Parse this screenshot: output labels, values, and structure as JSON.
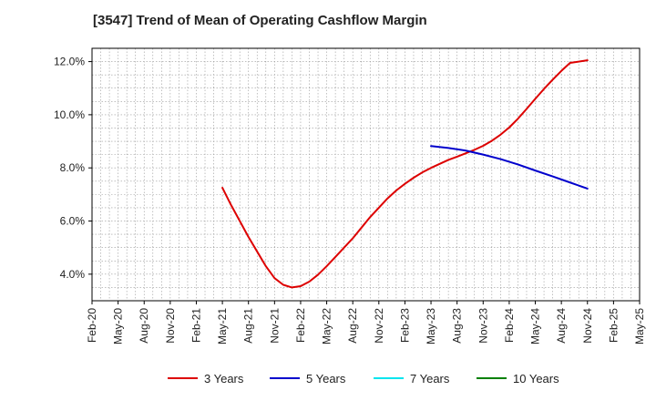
{
  "chart_data": {
    "type": "line",
    "title": "[3547]  Trend of Mean of Operating Cashflow Margin",
    "xlabel": "",
    "ylabel": "",
    "x_ticks": [
      "Feb-20",
      "May-20",
      "Aug-20",
      "Nov-20",
      "Feb-21",
      "May-21",
      "Aug-21",
      "Nov-21",
      "Feb-22",
      "May-22",
      "Aug-22",
      "Nov-22",
      "Feb-23",
      "May-23",
      "Aug-23",
      "Nov-23",
      "Feb-24",
      "May-24",
      "Aug-24",
      "Nov-24",
      "Feb-25",
      "May-25"
    ],
    "y_ticks": [
      "4.0%",
      "6.0%",
      "8.0%",
      "10.0%",
      "12.0%"
    ],
    "y_tick_values": [
      4,
      6,
      8,
      10,
      12
    ],
    "ylim": [
      3.0,
      12.5
    ],
    "grid": true,
    "legend_position": "bottom",
    "series": [
      {
        "name": "3 Years",
        "color": "#dd0000",
        "points": [
          {
            "x": "May-21",
            "y": 7.25
          },
          {
            "x": "Jun-21",
            "y": 6.6
          },
          {
            "x": "Jul-21",
            "y": 6.0
          },
          {
            "x": "Aug-21",
            "y": 5.4
          },
          {
            "x": "Sep-21",
            "y": 4.85
          },
          {
            "x": "Oct-21",
            "y": 4.3
          },
          {
            "x": "Nov-21",
            "y": 3.85
          },
          {
            "x": "Dec-21",
            "y": 3.6
          },
          {
            "x": "Jan-22",
            "y": 3.5
          },
          {
            "x": "Feb-22",
            "y": 3.55
          },
          {
            "x": "Mar-22",
            "y": 3.72
          },
          {
            "x": "Apr-22",
            "y": 3.98
          },
          {
            "x": "May-22",
            "y": 4.3
          },
          {
            "x": "Jun-22",
            "y": 4.65
          },
          {
            "x": "Jul-22",
            "y": 5.0
          },
          {
            "x": "Aug-22",
            "y": 5.35
          },
          {
            "x": "Sep-22",
            "y": 5.75
          },
          {
            "x": "Oct-22",
            "y": 6.15
          },
          {
            "x": "Nov-22",
            "y": 6.5
          },
          {
            "x": "Dec-22",
            "y": 6.85
          },
          {
            "x": "Jan-23",
            "y": 7.15
          },
          {
            "x": "Feb-23",
            "y": 7.4
          },
          {
            "x": "Mar-23",
            "y": 7.63
          },
          {
            "x": "Apr-23",
            "y": 7.83
          },
          {
            "x": "May-23",
            "y": 8.0
          },
          {
            "x": "Jun-23",
            "y": 8.15
          },
          {
            "x": "Jul-23",
            "y": 8.3
          },
          {
            "x": "Aug-23",
            "y": 8.42
          },
          {
            "x": "Sep-23",
            "y": 8.55
          },
          {
            "x": "Oct-23",
            "y": 8.68
          },
          {
            "x": "Nov-23",
            "y": 8.83
          },
          {
            "x": "Dec-23",
            "y": 9.02
          },
          {
            "x": "Jan-24",
            "y": 9.25
          },
          {
            "x": "Feb-24",
            "y": 9.52
          },
          {
            "x": "Mar-24",
            "y": 9.85
          },
          {
            "x": "Apr-24",
            "y": 10.22
          },
          {
            "x": "May-24",
            "y": 10.6
          },
          {
            "x": "Jun-24",
            "y": 10.97
          },
          {
            "x": "Jul-24",
            "y": 11.32
          },
          {
            "x": "Aug-24",
            "y": 11.65
          },
          {
            "x": "Sep-24",
            "y": 11.95
          },
          {
            "x": "Nov-24",
            "y": 12.05
          }
        ]
      },
      {
        "name": "5 Years",
        "color": "#0000cc",
        "points": [
          {
            "x": "May-23",
            "y": 8.82
          },
          {
            "x": "Jul-23",
            "y": 8.75
          },
          {
            "x": "Sep-23",
            "y": 8.65
          },
          {
            "x": "Nov-23",
            "y": 8.5
          },
          {
            "x": "Jan-24",
            "y": 8.33
          },
          {
            "x": "Mar-24",
            "y": 8.13
          },
          {
            "x": "May-24",
            "y": 7.9
          },
          {
            "x": "Jul-24",
            "y": 7.68
          },
          {
            "x": "Sep-24",
            "y": 7.45
          },
          {
            "x": "Nov-24",
            "y": 7.22
          }
        ]
      },
      {
        "name": "7 Years",
        "color": "#00e5ee",
        "points": []
      },
      {
        "name": "10 Years",
        "color": "#008000",
        "points": []
      }
    ]
  }
}
